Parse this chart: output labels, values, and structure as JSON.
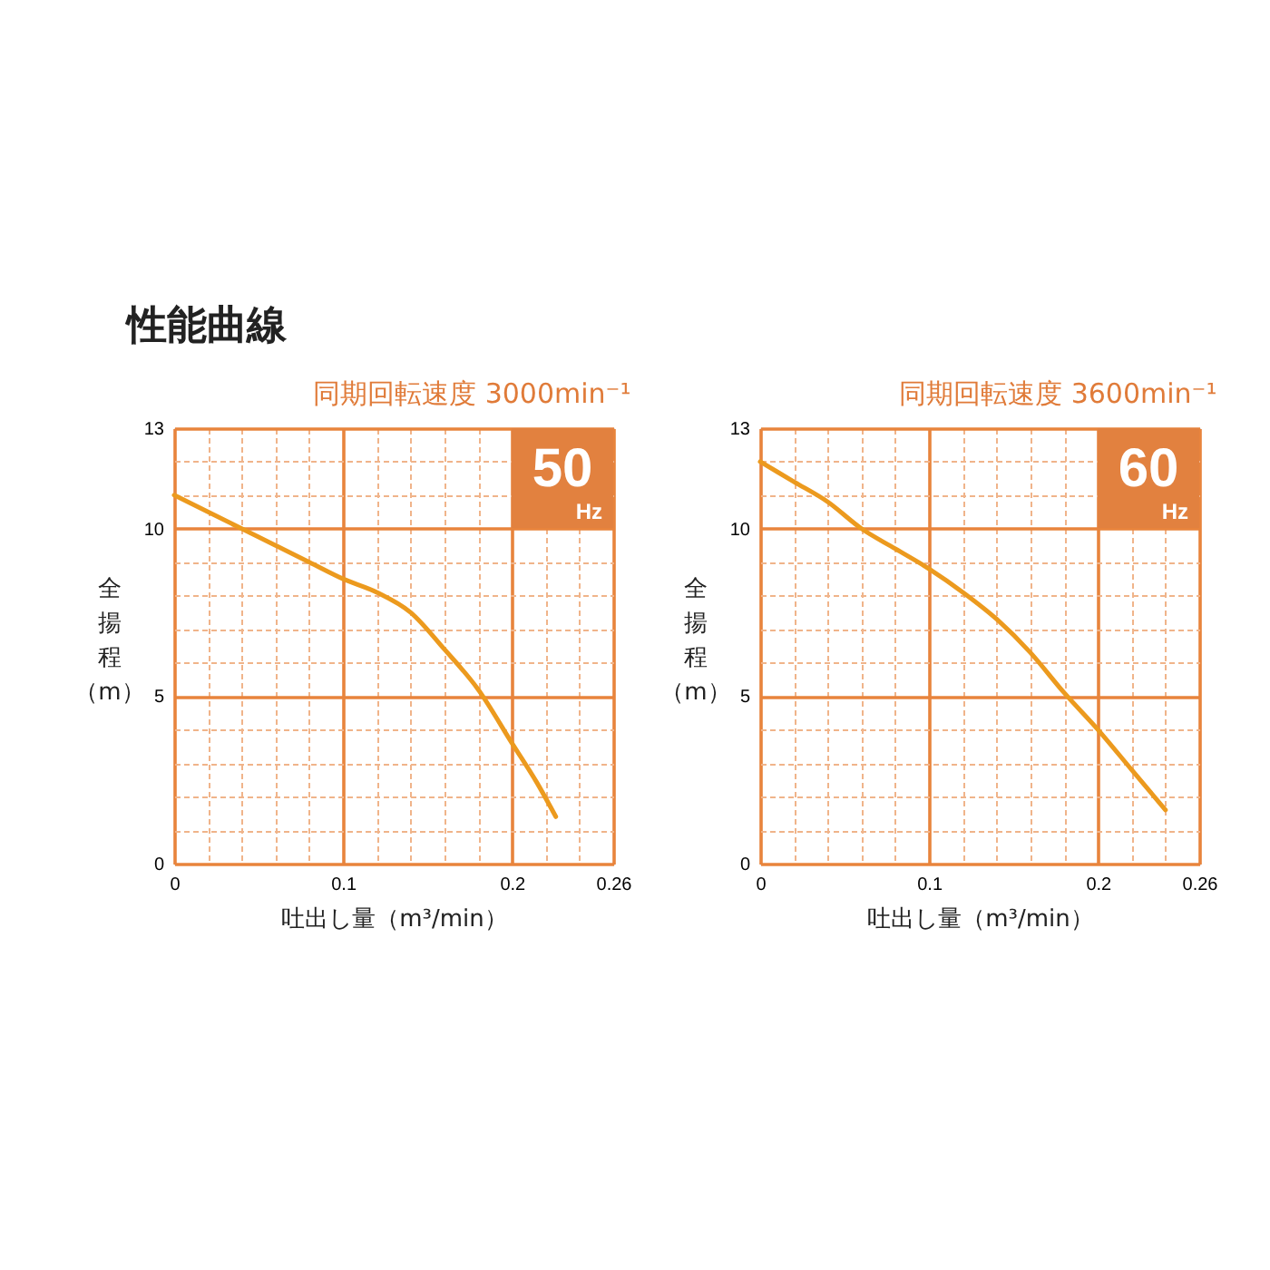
{
  "chart_data": [
    {
      "type": "line",
      "title": "性能曲線",
      "subtitle": "同期回転速度 3000min⁻¹",
      "xlabel": "吐出し量（m³/min）",
      "ylabel": "全揚程（m）",
      "annotations": [
        "50",
        "Hz"
      ],
      "xlim": [
        0,
        0.26
      ],
      "ylim": [
        0,
        13
      ],
      "xticks": [
        0,
        {
          "value": 0.02,
          "label": null
        },
        {
          "value": 0.04,
          "label": null
        },
        {
          "value": 0.06,
          "label": null
        },
        {
          "value": 0.08,
          "label": null
        },
        0.1,
        {
          "value": 0.12,
          "label": null
        },
        {
          "value": 0.14,
          "label": null
        },
        {
          "value": 0.16,
          "label": null
        },
        {
          "value": 0.18,
          "label": null
        },
        0.2,
        {
          "value": 0.22,
          "label": null
        },
        {
          "value": 0.24,
          "label": null
        },
        0.26
      ],
      "yticks": [
        0,
        {
          "value": 1,
          "label": null
        },
        {
          "value": 2,
          "label": null
        },
        {
          "value": 3,
          "label": null
        },
        {
          "value": 4,
          "label": null
        },
        5,
        {
          "value": 6,
          "label": null
        },
        {
          "value": 7,
          "label": null
        },
        {
          "value": 8,
          "label": null
        },
        {
          "value": 9,
          "label": null
        },
        10,
        {
          "value": 11,
          "label": null
        },
        {
          "value": 12,
          "label": null
        },
        13
      ],
      "grid": true,
      "series": [
        {
          "color": "#ec9a1e",
          "x": [
            0,
            0.02,
            0.04,
            0.06,
            0.08,
            0.1,
            0.12,
            0.14,
            0.16,
            0.18,
            0.2,
            0.215,
            0.226
          ],
          "values": [
            11.0,
            10.5,
            10.0,
            9.5,
            9.0,
            8.5,
            8.1,
            7.5,
            6.4,
            5.2,
            3.6,
            2.4,
            1.4
          ]
        }
      ]
    },
    {
      "type": "line",
      "subtitle": "同期回転速度 3600min⁻¹",
      "xlabel": "吐出し量（m³/min）",
      "ylabel": "全揚程（m）",
      "annotations": [
        "60",
        "Hz"
      ],
      "xlim": [
        0,
        0.26
      ],
      "ylim": [
        0,
        13
      ],
      "xticks": [
        0,
        {
          "value": 0.02,
          "label": null
        },
        {
          "value": 0.04,
          "label": null
        },
        {
          "value": 0.06,
          "label": null
        },
        {
          "value": 0.08,
          "label": null
        },
        0.1,
        {
          "value": 0.12,
          "label": null
        },
        {
          "value": 0.14,
          "label": null
        },
        {
          "value": 0.16,
          "label": null
        },
        {
          "value": 0.18,
          "label": null
        },
        0.2,
        {
          "value": 0.22,
          "label": null
        },
        {
          "value": 0.24,
          "label": null
        },
        0.26
      ],
      "yticks": [
        0,
        {
          "value": 1,
          "label": null
        },
        {
          "value": 2,
          "label": null
        },
        {
          "value": 3,
          "label": null
        },
        {
          "value": 4,
          "label": null
        },
        5,
        {
          "value": 6,
          "label": null
        },
        {
          "value": 7,
          "label": null
        },
        {
          "value": 8,
          "label": null
        },
        {
          "value": 9,
          "label": null
        },
        10,
        {
          "value": 11,
          "label": null
        },
        {
          "value": 12,
          "label": null
        },
        13
      ],
      "grid": true,
      "series": [
        {
          "color": "#ec9a1e",
          "x": [
            0,
            0.02,
            0.04,
            0.06,
            0.08,
            0.1,
            0.12,
            0.14,
            0.16,
            0.18,
            0.2,
            0.22,
            0.24
          ],
          "values": [
            12.0,
            11.4,
            10.8,
            10.0,
            9.4,
            8.8,
            8.1,
            7.3,
            6.3,
            5.1,
            4.0,
            2.8,
            1.6
          ]
        }
      ]
    }
  ]
}
